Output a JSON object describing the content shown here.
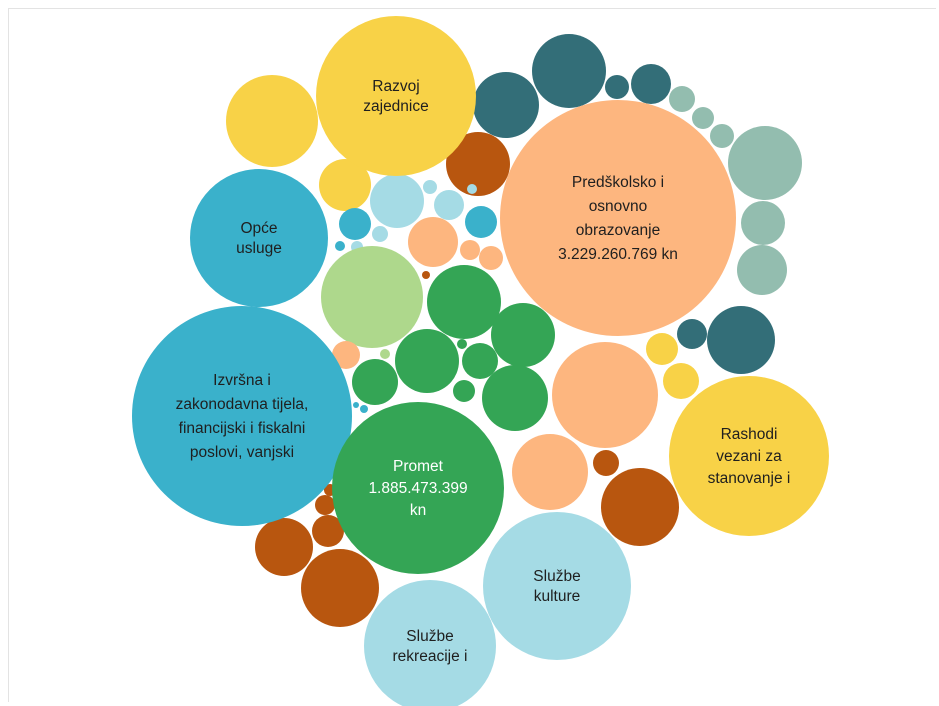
{
  "chart_data": {
    "type": "bubble",
    "bubbles": [
      {
        "id": "razvoj-zajednice",
        "label": [
          "Razvoj",
          "zajednice"
        ],
        "color": "#f8d247",
        "text_color": "#1f1f1f"
      },
      {
        "id": "predskolsko-obrazovanje",
        "label": [
          "Predškolsko i",
          "osnovno",
          "obrazovanje",
          "3.229.260.769 kn"
        ],
        "color": "#fdb67f",
        "text_color": "#1f1f1f"
      },
      {
        "id": "opce-usluge",
        "label": [
          "Opće",
          "usluge"
        ],
        "color": "#3ab1cb",
        "text_color": "#1f1f1f"
      },
      {
        "id": "izvrsna-tijela",
        "label": [
          "Izvršna i",
          "zakonodavna tijela,",
          "financijski i fiskalni",
          "poslovi, vanjski"
        ],
        "color": "#3ab1cb",
        "text_color": "#1f1f1f"
      },
      {
        "id": "promet",
        "label": [
          "Promet",
          "1.885.473.399",
          "kn"
        ],
        "color": "#34a555",
        "text_color": "#ffffff"
      },
      {
        "id": "rashodi-stanovanje",
        "label": [
          "Rashodi",
          "vezani za",
          "stanovanje i"
        ],
        "color": "#f8d247",
        "text_color": "#1f1f1f"
      },
      {
        "id": "sluzbe-kulture",
        "label": [
          "Službe",
          "kulture"
        ],
        "color": "#a5dbe5",
        "text_color": "#1f1f1f"
      },
      {
        "id": "sluzbe-rekreacije",
        "label": [
          "Službe",
          "rekreacije i"
        ],
        "color": "#a5dbe5",
        "text_color": "#1f1f1f"
      }
    ],
    "colors": {
      "yellow": "#f8d247",
      "peach": "#fdb67f",
      "blue": "#3ab1cb",
      "lightblue": "#a5dbe5",
      "green": "#34a555",
      "lightgreen": "#aed88c",
      "darkteal": "#336e78",
      "sage": "#93bdaf",
      "rust": "#b8560f"
    }
  }
}
